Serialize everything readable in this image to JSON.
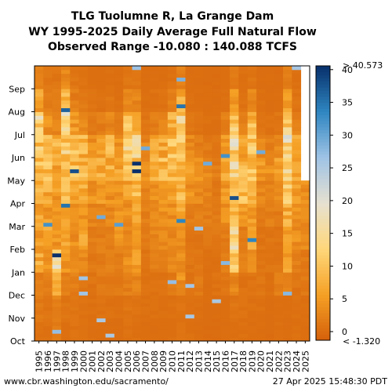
{
  "header": {
    "title_lines": [
      "TLG Tuolumne R, La Grange Dam",
      "WY 1995-2025 Daily Average Full Natural Flow",
      "Observed Range -10.080 : 140.088 TCFS"
    ]
  },
  "footer": {
    "source": "www.cbr.washington.edu/sacramento/",
    "timestamp": "27 Apr 2025 15:48:30 PDT"
  },
  "chart_data": {
    "type": "heatmap",
    "title": "TLG Tuolumne R, La Grange Dam",
    "subtitle": "WY 1995-2025 Daily Average Full Natural Flow",
    "observed_range_text": "Observed Range -10.080 : 140.088 TCFS",
    "x": [
      "1995",
      "1996",
      "1997",
      "1998",
      "1999",
      "2000",
      "2001",
      "2002",
      "2003",
      "2004",
      "2005",
      "2006",
      "2007",
      "2008",
      "2009",
      "2010",
      "2011",
      "2012",
      "2013",
      "2014",
      "2015",
      "2016",
      "2017",
      "2018",
      "2019",
      "2020",
      "2021",
      "2022",
      "2023",
      "2024",
      "2025"
    ],
    "y_categories": [
      "Oct",
      "Nov",
      "Dec",
      "Jan",
      "Feb",
      "Mar",
      "Apr",
      "May",
      "Jun",
      "Jul",
      "Aug",
      "Sep"
    ],
    "colorbar": {
      "ticks": [
        0,
        5,
        10,
        15,
        20,
        25,
        30,
        35,
        40
      ],
      "range": [
        -1.32,
        40.573
      ],
      "max_label": "> 40.573",
      "min_label": "< -1.320",
      "colors": [
        "#d4600a",
        "#f5a025",
        "#ffd77a",
        "#e6e1d0",
        "#9fc3e6",
        "#2e86c1",
        "#08306b"
      ]
    },
    "monthly_mean_tcfs": {
      "1995": [
        1.0,
        1.5,
        2.5,
        7.0,
        5.0,
        6.0,
        7.0,
        9.0,
        11.0,
        13.0,
        6.0,
        2.0
      ],
      "1996": [
        0.8,
        1.0,
        2.0,
        4.0,
        6.0,
        5.0,
        7.0,
        9.0,
        8.0,
        4.0,
        2.0,
        1.2
      ],
      "1997": [
        1.5,
        2.5,
        6.0,
        16.0,
        5.0,
        4.0,
        5.0,
        7.0,
        8.0,
        3.0,
        1.5,
        1.0
      ],
      "1998": [
        0.6,
        1.0,
        2.0,
        5.0,
        8.0,
        7.0,
        8.0,
        9.0,
        11.0,
        14.0,
        8.0,
        3.0
      ],
      "1999": [
        1.0,
        1.2,
        2.0,
        3.0,
        4.0,
        4.0,
        6.0,
        9.0,
        9.0,
        5.0,
        2.0,
        1.0
      ],
      "2000": [
        0.6,
        0.8,
        1.0,
        3.0,
        6.0,
        5.0,
        7.0,
        9.0,
        8.0,
        3.0,
        1.5,
        0.8
      ],
      "2001": [
        0.4,
        0.6,
        1.0,
        1.5,
        2.0,
        3.0,
        4.0,
        6.0,
        4.0,
        1.5,
        0.8,
        0.5
      ],
      "2002": [
        0.3,
        0.8,
        1.5,
        2.0,
        2.0,
        3.0,
        5.0,
        7.0,
        5.0,
        2.0,
        0.8,
        0.4
      ],
      "2003": [
        0.3,
        0.6,
        1.5,
        2.0,
        2.5,
        3.0,
        4.0,
        7.0,
        8.0,
        3.0,
        1.0,
        0.5
      ],
      "2004": [
        0.3,
        0.6,
        1.5,
        2.0,
        4.0,
        4.0,
        5.0,
        6.0,
        4.0,
        1.5,
        0.6,
        0.4
      ],
      "2005": [
        0.8,
        1.0,
        2.0,
        4.0,
        3.0,
        4.0,
        6.0,
        10.0,
        13.0,
        9.0,
        3.0,
        1.2
      ],
      "2006": [
        0.5,
        0.8,
        3.0,
        5.0,
        4.0,
        6.0,
        9.0,
        12.0,
        12.0,
        8.0,
        3.0,
        1.2
      ],
      "2007": [
        0.4,
        0.6,
        0.8,
        1.0,
        1.5,
        2.0,
        3.0,
        4.0,
        3.0,
        1.0,
        0.5,
        0.3
      ],
      "2008": [
        0.3,
        0.6,
        0.8,
        2.0,
        3.0,
        3.0,
        4.0,
        7.0,
        6.0,
        2.0,
        0.8,
        0.4
      ],
      "2009": [
        0.3,
        0.5,
        0.8,
        2.0,
        3.0,
        4.0,
        5.0,
        9.0,
        7.0,
        2.5,
        0.8,
        0.4
      ],
      "2010": [
        0.5,
        0.6,
        1.5,
        3.0,
        3.0,
        4.0,
        5.0,
        8.0,
        11.0,
        7.0,
        2.0,
        0.8
      ],
      "2011": [
        0.8,
        1.0,
        4.0,
        4.0,
        4.0,
        6.0,
        8.0,
        10.0,
        13.0,
        12.0,
        7.0,
        2.5
      ],
      "2012": [
        0.6,
        0.6,
        0.8,
        1.0,
        1.0,
        2.0,
        4.0,
        5.0,
        3.0,
        1.0,
        0.5,
        0.3
      ],
      "2013": [
        0.3,
        0.6,
        1.5,
        1.5,
        1.0,
        2.0,
        3.0,
        4.0,
        2.0,
        0.8,
        0.4,
        0.3
      ],
      "2014": [
        0.2,
        0.3,
        0.4,
        0.5,
        1.5,
        2.0,
        2.5,
        3.0,
        1.5,
        0.6,
        0.3,
        0.2
      ],
      "2015": [
        0.2,
        0.3,
        0.8,
        0.6,
        1.5,
        1.5,
        1.5,
        2.0,
        1.0,
        0.5,
        0.3,
        0.2
      ],
      "2016": [
        0.3,
        0.4,
        1.2,
        2.0,
        2.0,
        4.0,
        5.0,
        7.0,
        5.0,
        2.0,
        0.6,
        0.3
      ],
      "2017": [
        0.5,
        1.0,
        3.0,
        14.0,
        16.0,
        8.0,
        9.0,
        13.0,
        14.0,
        11.0,
        5.0,
        1.5
      ],
      "2018": [
        0.6,
        0.8,
        0.8,
        2.0,
        1.5,
        5.0,
        9.0,
        8.0,
        6.0,
        2.0,
        0.8,
        0.5
      ],
      "2019": [
        0.4,
        0.6,
        1.0,
        3.0,
        6.0,
        5.0,
        7.0,
        9.0,
        12.0,
        9.0,
        3.0,
        1.0
      ],
      "2020": [
        0.4,
        0.6,
        1.0,
        1.0,
        1.0,
        2.0,
        3.0,
        5.0,
        3.0,
        1.0,
        0.5,
        0.3
      ],
      "2021": [
        0.2,
        0.3,
        0.6,
        1.0,
        1.0,
        2.0,
        2.5,
        4.0,
        2.0,
        0.8,
        0.3,
        0.2
      ],
      "2022": [
        0.5,
        0.5,
        2.0,
        1.0,
        1.0,
        2.0,
        4.0,
        5.0,
        3.0,
        1.0,
        0.4,
        0.2
      ],
      "2023": [
        0.3,
        0.5,
        2.0,
        7.0,
        5.0,
        7.0,
        10.0,
        13.0,
        15.0,
        11.0,
        5.0,
        2.0
      ],
      "2024": [
        0.5,
        0.6,
        1.0,
        2.0,
        4.0,
        4.0,
        5.0,
        7.0,
        6.0,
        2.5,
        1.0,
        0.5
      ],
      "2025": [
        0.4,
        0.5,
        1.5,
        1.5,
        3.0,
        3.0,
        4.0
      ]
    }
  }
}
